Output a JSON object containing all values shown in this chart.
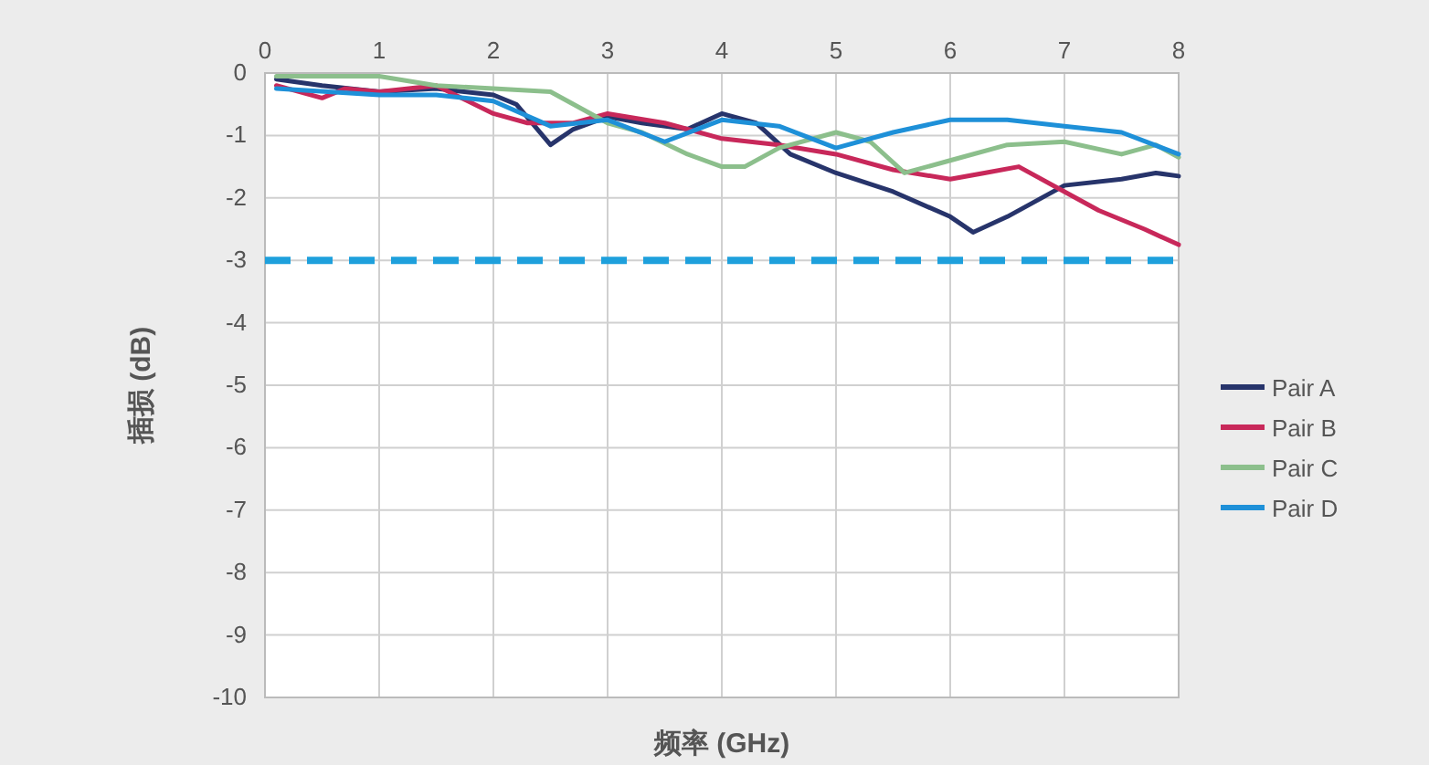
{
  "chart_data": {
    "type": "line",
    "xlabel": "频率 (GHz)",
    "ylabel": "插损 (dB)",
    "xlim": [
      0,
      8
    ],
    "xticks": [
      0,
      1,
      2,
      3,
      4,
      5,
      6,
      7,
      8
    ],
    "ylim": [
      -10,
      0
    ],
    "yticks": [
      -10,
      -9,
      -8,
      -7,
      -6,
      -5,
      -4,
      -3,
      -2,
      -1,
      0
    ],
    "grid": true,
    "legend": "right",
    "line_style": "solid",
    "marker": "none",
    "series": [
      {
        "name": "Pair A",
        "color": "#27346b",
        "x": [
          0.1,
          0.5,
          1,
          1.5,
          2,
          2.2,
          2.5,
          2.7,
          3,
          3.3,
          3.7,
          4,
          4.3,
          4.6,
          5,
          5.5,
          6,
          6.2,
          6.5,
          7,
          7.5,
          7.8,
          8
        ],
        "values": [
          -0.1,
          -0.2,
          -0.3,
          -0.25,
          -0.35,
          -0.5,
          -1.15,
          -0.9,
          -0.7,
          -0.8,
          -0.9,
          -0.65,
          -0.8,
          -1.3,
          -1.6,
          -1.9,
          -2.3,
          -2.55,
          -2.3,
          -1.8,
          -1.7,
          -1.6,
          -1.65
        ]
      },
      {
        "name": "Pair B",
        "color": "#c8285a",
        "x": [
          0.1,
          0.5,
          0.7,
          1,
          1.5,
          2,
          2.3,
          2.7,
          3,
          3.5,
          4,
          4.5,
          5,
          5.5,
          6,
          6.3,
          6.6,
          7,
          7.3,
          7.7,
          8
        ],
        "values": [
          -0.2,
          -0.4,
          -0.25,
          -0.3,
          -0.2,
          -0.65,
          -0.8,
          -0.8,
          -0.65,
          -0.8,
          -1.05,
          -1.15,
          -1.3,
          -1.55,
          -1.7,
          -1.6,
          -1.5,
          -1.9,
          -2.2,
          -2.5,
          -2.75
        ]
      },
      {
        "name": "Pair C",
        "color": "#8cbf8c",
        "x": [
          0.1,
          1,
          1.5,
          2,
          2.5,
          2.8,
          3,
          3.3,
          3.7,
          4,
          4.2,
          4.5,
          5,
          5.3,
          5.6,
          6,
          6.5,
          7,
          7.5,
          7.8,
          8
        ],
        "values": [
          -0.05,
          -0.05,
          -0.2,
          -0.25,
          -0.3,
          -0.6,
          -0.8,
          -0.95,
          -1.3,
          -1.5,
          -1.5,
          -1.2,
          -0.95,
          -1.1,
          -1.6,
          -1.4,
          -1.15,
          -1.1,
          -1.3,
          -1.15,
          -1.35
        ]
      },
      {
        "name": "Pair D",
        "color": "#1e90d8",
        "x": [
          0.1,
          1,
          1.5,
          2,
          2.5,
          3,
          3.5,
          4,
          4.5,
          5,
          5.5,
          6,
          6.5,
          7,
          7.5,
          8
        ],
        "values": [
          -0.25,
          -0.35,
          -0.35,
          -0.45,
          -0.85,
          -0.75,
          -1.1,
          -0.75,
          -0.85,
          -1.2,
          -0.95,
          -0.75,
          -0.75,
          -0.85,
          -0.95,
          -1.3
        ]
      }
    ],
    "ref_lines": [
      {
        "axis": "y",
        "value": -3,
        "color": "#1ea0dc",
        "line_style": "dashed"
      }
    ]
  }
}
